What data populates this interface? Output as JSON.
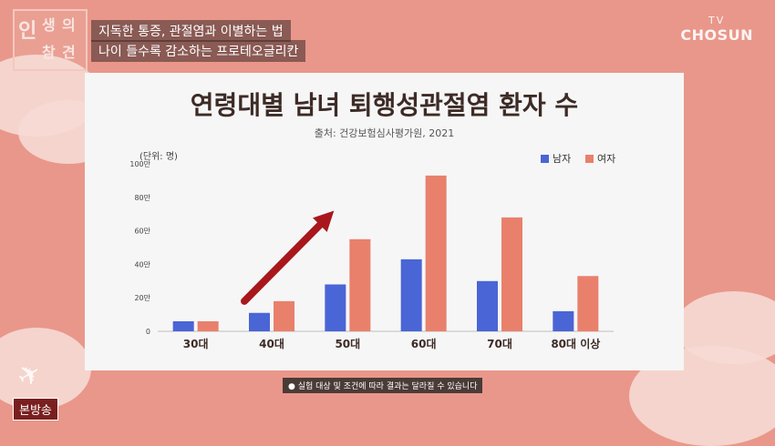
{
  "show": {
    "logo_chars": [
      "인",
      "생",
      "의",
      "참",
      "견"
    ],
    "subtitle_lines": [
      "지독한 통증, 관절염과 이별하는 법",
      "나이 들수록 감소하는 프로테오글리칸"
    ],
    "broadcaster_tv": "TV",
    "broadcaster_name": "CHOSUN",
    "badge": "본방송",
    "note": "● 실험 대상 및 조건에 따라 결과는 달라질 수 있습니다"
  },
  "colors": {
    "male": "#4a65d6",
    "female": "#e9806c",
    "arrow": "#a8171c",
    "text": "#3d2b26"
  },
  "chart_data": {
    "type": "bar",
    "title": "연령대별 남녀 퇴행성관절염 환자 수",
    "subtitle": "출처: 건강보험심사평가원, 2021",
    "unit_label": "(단위: 명)",
    "categories": [
      "30대",
      "40대",
      "50대",
      "60대",
      "70대",
      "80대 이상"
    ],
    "series": [
      {
        "name": "남자",
        "values": [
          6,
          11,
          28,
          43,
          30,
          12
        ]
      },
      {
        "name": "여자",
        "values": [
          6,
          18,
          55,
          93,
          68,
          33
        ]
      }
    ],
    "y_ticks": [
      "0",
      "20만",
      "40만",
      "60만",
      "80만",
      "100만"
    ],
    "y_tick_values": [
      0,
      20,
      40,
      60,
      80,
      100
    ],
    "ylim": [
      0,
      100
    ],
    "grid": false,
    "legend_position": "top-right",
    "annotation": "red arrow rising from 40대 toward 50대"
  }
}
